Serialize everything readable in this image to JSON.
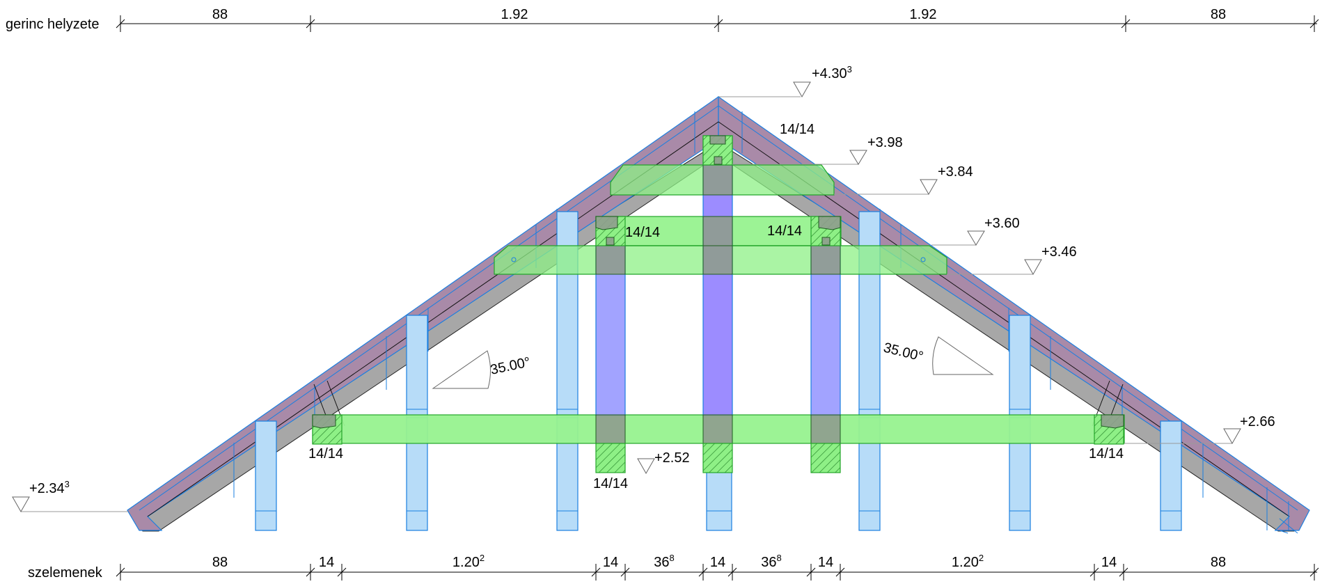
{
  "title": "",
  "rows": {
    "top_label": "gerinc helyzete",
    "bottom_label": "szelemenek"
  },
  "top_dims": [
    {
      "text": "88",
      "sup": ""
    },
    {
      "text": "1.92",
      "sup": ""
    },
    {
      "text": "1.92",
      "sup": ""
    },
    {
      "text": "88",
      "sup": ""
    }
  ],
  "bottom_dims": [
    {
      "text": "88",
      "sup": ""
    },
    {
      "text": "14",
      "sup": ""
    },
    {
      "text": "1.20",
      "sup": "2"
    },
    {
      "text": "14",
      "sup": ""
    },
    {
      "text": "36",
      "sup": "8"
    },
    {
      "text": "14",
      "sup": ""
    },
    {
      "text": "36",
      "sup": "8"
    },
    {
      "text": "14",
      "sup": ""
    },
    {
      "text": "1.20",
      "sup": "2"
    },
    {
      "text": "14",
      "sup": ""
    },
    {
      "text": "88",
      "sup": ""
    }
  ],
  "elevations": [
    {
      "text": "+4.30",
      "sup": "3"
    },
    {
      "text": "+3.98",
      "sup": ""
    },
    {
      "text": "+3.84",
      "sup": ""
    },
    {
      "text": "+3.60",
      "sup": ""
    },
    {
      "text": "+3.46",
      "sup": ""
    },
    {
      "text": "+2.66",
      "sup": ""
    },
    {
      "text": "+2.52",
      "sup": ""
    },
    {
      "text": "+2.34",
      "sup": "3"
    }
  ],
  "section_labels": [
    "14/14",
    "14/14",
    "14/14",
    "14/14",
    "14/14",
    "14/14"
  ],
  "angles": [
    "35.00°",
    "35.00°"
  ],
  "colors": {
    "rafter": "#a98aa8",
    "rafter_underside": "#a7a7a7",
    "collar_beam": "#97f28f",
    "post_light": "#b7dcf8",
    "post_violet": "#a2a3ff",
    "outline_blue": "#1a7fe0",
    "outline_green": "#23a52a"
  }
}
